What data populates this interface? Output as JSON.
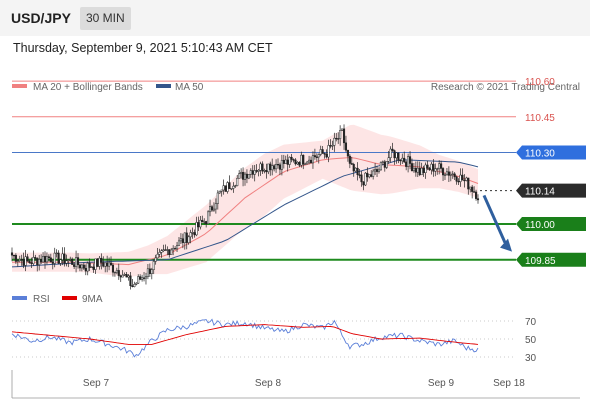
{
  "header": {
    "symbol": "USD/JPY",
    "timeframe": "30 MIN",
    "datetime": "Thursday, September 9, 2021 5:10:43 AM CET"
  },
  "colors": {
    "resistance": "#f08080",
    "pivot": "#4a78c8",
    "support": "#1e8a1e",
    "current": "#333333",
    "up_candle": "#ffffff",
    "down_candle": "#222222",
    "bollinger_fill": "#fde0e0",
    "ma20": "#f08080",
    "ma50": "#34568b",
    "rsi": "#5b7fd8",
    "rsi_ma": "#e00000",
    "arrow": "#2f5f9e"
  },
  "chart_data": [
    {
      "type": "candlestick",
      "title": "USD/JPY",
      "legend": [
        {
          "name": "MA 20 + Bollinger Bands",
          "color": "#f08080"
        },
        {
          "name": "MA 50",
          "color": "#34568b"
        }
      ],
      "watermark": "Research © 2021 Trading Central",
      "x_labels": [
        "Sep 7",
        "Sep 8",
        "Sep 9",
        "Sep 18"
      ],
      "ylim": [
        109.74,
        110.68
      ],
      "levels": [
        {
          "value": 110.6,
          "label": "110.60",
          "kind": "resistance"
        },
        {
          "value": 110.45,
          "label": "110.45",
          "kind": "resistance"
        },
        {
          "value": 110.3,
          "label": "110.30",
          "kind": "pivot"
        },
        {
          "value": 110.14,
          "label": "110.14",
          "kind": "current"
        },
        {
          "value": 110.0,
          "label": "110.00",
          "kind": "support"
        },
        {
          "value": 109.85,
          "label": "109.85",
          "kind": "support"
        }
      ],
      "arrow": {
        "from": 110.12,
        "to": 109.88,
        "direction": "down"
      },
      "close_anchors": [
        [
          0,
          109.87
        ],
        [
          8,
          109.84
        ],
        [
          18,
          109.86
        ],
        [
          28,
          109.85
        ],
        [
          38,
          109.82
        ],
        [
          46,
          109.84
        ],
        [
          56,
          109.8
        ],
        [
          62,
          109.74
        ],
        [
          70,
          109.8
        ],
        [
          78,
          109.88
        ],
        [
          86,
          109.92
        ],
        [
          92,
          109.96
        ],
        [
          100,
          110.02
        ],
        [
          106,
          110.12
        ],
        [
          114,
          110.18
        ],
        [
          124,
          110.23
        ],
        [
          134,
          110.25
        ],
        [
          144,
          110.26
        ],
        [
          154,
          110.28
        ],
        [
          162,
          110.3
        ],
        [
          170,
          110.38
        ],
        [
          174,
          110.24
        ],
        [
          180,
          110.18
        ],
        [
          188,
          110.22
        ],
        [
          196,
          110.3
        ],
        [
          204,
          110.26
        ],
        [
          210,
          110.22
        ],
        [
          218,
          110.24
        ],
        [
          224,
          110.22
        ],
        [
          230,
          110.2
        ],
        [
          236,
          110.16
        ],
        [
          240,
          110.12
        ]
      ],
      "ma20_anchors": [
        [
          0,
          109.84
        ],
        [
          30,
          109.84
        ],
        [
          60,
          109.83
        ],
        [
          80,
          109.87
        ],
        [
          100,
          109.96
        ],
        [
          120,
          110.11
        ],
        [
          140,
          110.22
        ],
        [
          160,
          110.27
        ],
        [
          175,
          110.28
        ],
        [
          190,
          110.25
        ],
        [
          210,
          110.24
        ],
        [
          230,
          110.2
        ],
        [
          240,
          110.17
        ]
      ],
      "ma50_anchors": [
        [
          0,
          109.82
        ],
        [
          40,
          109.84
        ],
        [
          80,
          109.85
        ],
        [
          110,
          109.93
        ],
        [
          140,
          110.08
        ],
        [
          170,
          110.2
        ],
        [
          200,
          110.27
        ],
        [
          230,
          110.26
        ],
        [
          240,
          110.24
        ]
      ],
      "band_width_anchors": [
        [
          0,
          0.04
        ],
        [
          40,
          0.04
        ],
        [
          70,
          0.06
        ],
        [
          100,
          0.12
        ],
        [
          130,
          0.13
        ],
        [
          160,
          0.08
        ],
        [
          175,
          0.14
        ],
        [
          195,
          0.12
        ],
        [
          220,
          0.07
        ],
        [
          240,
          0.06
        ]
      ]
    },
    {
      "type": "line",
      "title": "RSI",
      "legend": [
        {
          "name": "RSI",
          "color": "#5b7fd8"
        },
        {
          "name": "9MA",
          "color": "#e00000"
        }
      ],
      "ylim": [
        20,
        80
      ],
      "y_ticks": [
        "70",
        "50",
        "30"
      ],
      "rsi_anchors": [
        [
          0,
          56
        ],
        [
          10,
          48
        ],
        [
          20,
          52
        ],
        [
          30,
          46
        ],
        [
          40,
          50
        ],
        [
          50,
          44
        ],
        [
          58,
          38
        ],
        [
          64,
          32
        ],
        [
          72,
          48
        ],
        [
          80,
          60
        ],
        [
          90,
          64
        ],
        [
          100,
          70
        ],
        [
          110,
          66
        ],
        [
          120,
          68
        ],
        [
          130,
          62
        ],
        [
          140,
          58
        ],
        [
          150,
          66
        ],
        [
          160,
          62
        ],
        [
          166,
          70
        ],
        [
          170,
          54
        ],
        [
          174,
          42
        ],
        [
          180,
          44
        ],
        [
          190,
          52
        ],
        [
          200,
          54
        ],
        [
          210,
          48
        ],
        [
          220,
          44
        ],
        [
          228,
          48
        ],
        [
          234,
          40
        ],
        [
          240,
          38
        ]
      ],
      "ma_anchors": [
        [
          0,
          58
        ],
        [
          20,
          54
        ],
        [
          40,
          50
        ],
        [
          60,
          44
        ],
        [
          72,
          44
        ],
        [
          90,
          55
        ],
        [
          110,
          64
        ],
        [
          130,
          66
        ],
        [
          150,
          63
        ],
        [
          165,
          64
        ],
        [
          175,
          56
        ],
        [
          190,
          50
        ],
        [
          210,
          51
        ],
        [
          230,
          46
        ],
        [
          240,
          44
        ]
      ]
    }
  ]
}
